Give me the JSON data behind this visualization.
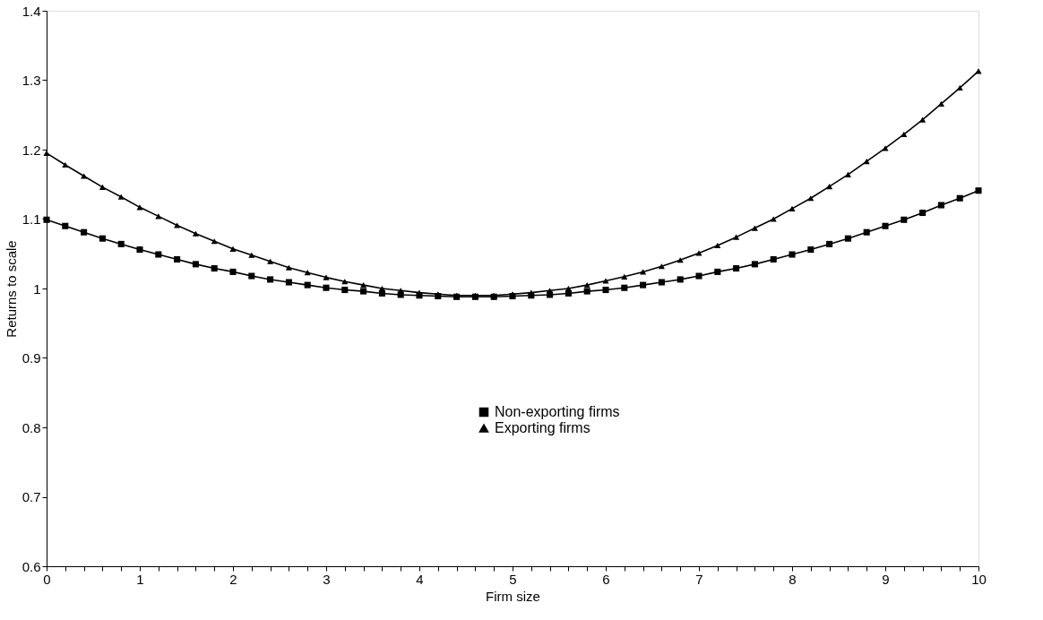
{
  "chart_data": {
    "type": "line",
    "xlabel": "Firm size",
    "ylabel": "Returns to scale",
    "x": [
      0,
      0.2,
      0.4,
      0.6,
      0.8,
      1,
      1.2,
      1.4,
      1.6,
      1.8,
      2,
      2.2,
      2.4,
      2.6,
      2.8,
      3,
      3.2,
      3.4,
      3.6,
      3.8,
      4,
      4.2,
      4.4,
      4.6,
      4.8,
      5,
      5.2,
      5.4,
      5.6,
      5.8,
      6,
      6.2,
      6.4,
      6.6,
      6.8,
      7,
      7.2,
      7.4,
      7.6,
      7.8,
      8,
      8.2,
      8.4,
      8.6,
      8.8,
      9,
      9.2,
      9.4,
      9.6,
      9.8,
      10
    ],
    "series": [
      {
        "name": "Non-exporting firms",
        "color": "#000000",
        "marker": "square",
        "values": [
          1.099,
          1.09,
          1.081,
          1.072,
          1.064,
          1.056,
          1.049,
          1.042,
          1.035,
          1.029,
          1.024,
          1.018,
          1.013,
          1.009,
          1.005,
          1.001,
          0.998,
          0.996,
          0.993,
          0.991,
          0.99,
          0.989,
          0.988,
          0.988,
          0.988,
          0.989,
          0.99,
          0.991,
          0.993,
          0.996,
          0.998,
          1.001,
          1.005,
          1.009,
          1.013,
          1.018,
          1.024,
          1.029,
          1.035,
          1.042,
          1.049,
          1.056,
          1.064,
          1.072,
          1.081,
          1.09,
          1.099,
          1.109,
          1.12,
          1.13,
          1.141
        ]
      },
      {
        "name": "Exporting firms",
        "color": "#000000",
        "marker": "triangle",
        "values": [
          1.195,
          1.178,
          1.162,
          1.146,
          1.132,
          1.117,
          1.104,
          1.091,
          1.079,
          1.068,
          1.057,
          1.048,
          1.039,
          1.03,
          1.023,
          1.016,
          1.01,
          1.005,
          1.0,
          0.997,
          0.994,
          0.992,
          0.99,
          0.99,
          0.99,
          0.992,
          0.994,
          0.997,
          1.0,
          1.005,
          1.011,
          1.017,
          1.024,
          1.032,
          1.041,
          1.051,
          1.062,
          1.074,
          1.087,
          1.1,
          1.115,
          1.13,
          1.147,
          1.164,
          1.183,
          1.202,
          1.222,
          1.243,
          1.266,
          1.289,
          1.313
        ]
      }
    ],
    "xlim": [
      0,
      10
    ],
    "xticks": [
      0,
      {
        "value": 0.2,
        "label": null
      },
      {
        "value": 0.4,
        "label": null
      },
      {
        "value": 0.6,
        "label": null
      },
      {
        "value": 0.8,
        "label": null
      },
      1,
      {
        "value": 1.2,
        "label": null
      },
      {
        "value": 1.4,
        "label": null
      },
      {
        "value": 1.6,
        "label": null
      },
      {
        "value": 1.8,
        "label": null
      },
      2,
      {
        "value": 2.2,
        "label": null
      },
      {
        "value": 2.4,
        "label": null
      },
      {
        "value": 2.6,
        "label": null
      },
      {
        "value": 2.8,
        "label": null
      },
      3,
      {
        "value": 3.2,
        "label": null
      },
      {
        "value": 3.4,
        "label": null
      },
      {
        "value": 3.6,
        "label": null
      },
      {
        "value": 3.8,
        "label": null
      },
      4,
      {
        "value": 4.2,
        "label": null
      },
      {
        "value": 4.4,
        "label": null
      },
      {
        "value": 4.6,
        "label": null
      },
      {
        "value": 4.8,
        "label": null
      },
      5,
      {
        "value": 5.2,
        "label": null
      },
      {
        "value": 5.4,
        "label": null
      },
      {
        "value": 5.6,
        "label": null
      },
      {
        "value": 5.8,
        "label": null
      },
      6,
      {
        "value": 6.2,
        "label": null
      },
      {
        "value": 6.4,
        "label": null
      },
      {
        "value": 6.6,
        "label": null
      },
      {
        "value": 6.8,
        "label": null
      },
      7,
      {
        "value": 7.2,
        "label": null
      },
      {
        "value": 7.4,
        "label": null
      },
      {
        "value": 7.6,
        "label": null
      },
      {
        "value": 7.8,
        "label": null
      },
      8,
      {
        "value": 8.2,
        "label": null
      },
      {
        "value": 8.4,
        "label": null
      },
      {
        "value": 8.6,
        "label": null
      },
      {
        "value": 8.8,
        "label": null
      },
      9,
      {
        "value": 9.2,
        "label": null
      },
      {
        "value": 9.4,
        "label": null
      },
      {
        "value": 9.6,
        "label": null
      },
      {
        "value": 9.8,
        "label": null
      },
      10
    ],
    "ylim": [
      0.6,
      1.4
    ],
    "yticks": [
      0.6,
      0.7,
      0.8,
      0.9,
      1,
      1.1,
      1.2,
      1.3,
      1.4
    ],
    "grid": false,
    "legend": "bottom",
    "line_style": "solid"
  }
}
